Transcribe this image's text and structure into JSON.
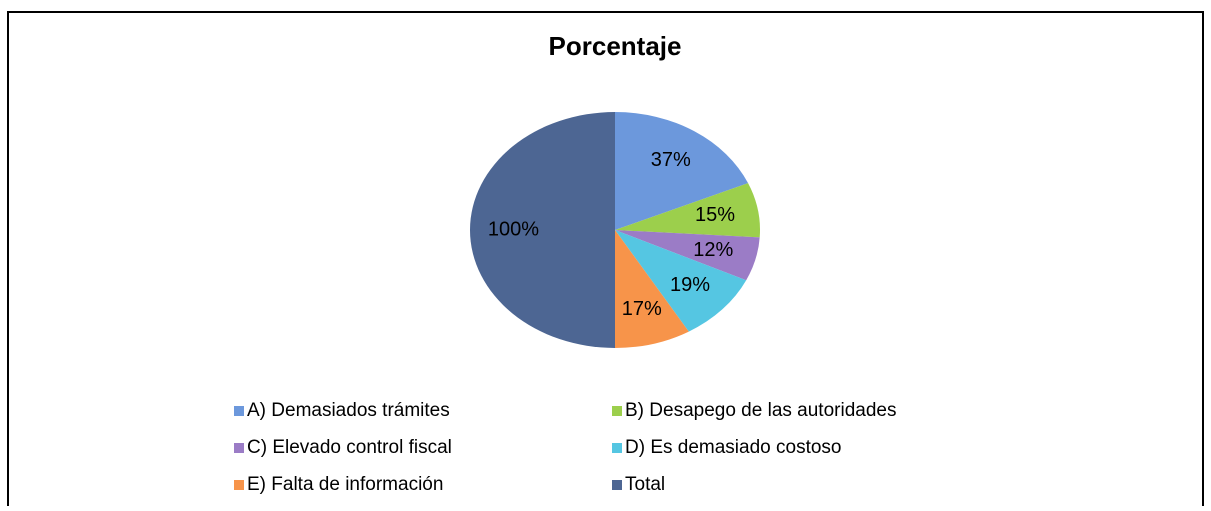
{
  "chart_data": {
    "type": "pie",
    "title": "Porcentaje",
    "categories": [
      "A) Demasiados trámites",
      "B) Desapego de las autoridades",
      "C) Elevado control fiscal",
      "D) Es demasiado costoso",
      "E) Falta de información",
      "Total"
    ],
    "values": [
      37,
      15,
      12,
      19,
      17,
      100
    ],
    "value_labels": [
      "37%",
      "15%",
      "12%",
      "19%",
      "17%",
      "100%"
    ],
    "colors": [
      "#6c98dc",
      "#9ccf4c",
      "#9b7cc6",
      "#55c6e2",
      "#f7944a",
      "#4d6693"
    ],
    "legend": "bottom"
  }
}
